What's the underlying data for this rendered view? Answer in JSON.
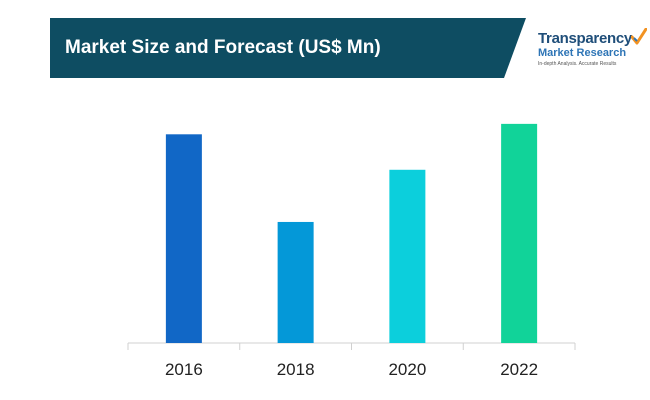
{
  "header": {
    "title": "Market Size and Forecast (US$ Mn)",
    "banner_color": "#0e4d62"
  },
  "logo": {
    "line1": "Transparency",
    "line2": "Market Research",
    "line3": "In-depth Analysis. Accurate Results",
    "check_icon": "checkmark-icon"
  },
  "chart_data": {
    "type": "bar",
    "categories": [
      "2016",
      "2018",
      "2020",
      "2022"
    ],
    "values": [
      100,
      58,
      83,
      105
    ],
    "ylim": [
      0,
      115
    ],
    "colors": [
      "#1167c6",
      "#0498d8",
      "#0ccfdc",
      "#11d399"
    ],
    "grid": false,
    "legend": false
  }
}
